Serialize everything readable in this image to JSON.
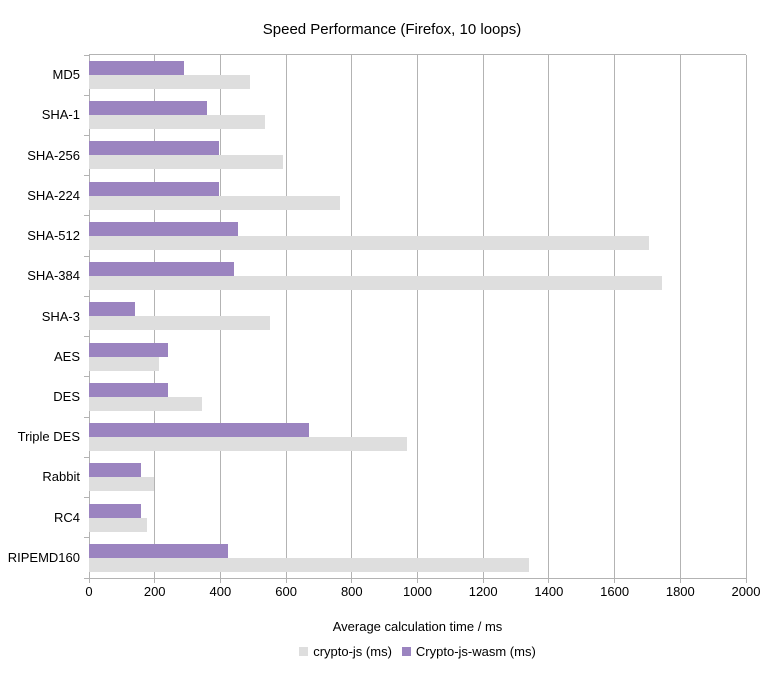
{
  "chart_data": {
    "type": "bar",
    "orientation": "horizontal",
    "title": "Speed Performance (Firefox, 10 loops)",
    "xlabel": "Average calculation time / ms",
    "ylabel": "",
    "xlim": [
      0,
      2000
    ],
    "xticks": [
      0,
      200,
      400,
      600,
      800,
      1000,
      1200,
      1400,
      1600,
      1800,
      2000
    ],
    "grid": true,
    "legend_position": "bottom",
    "categories": [
      "MD5",
      "SHA-1",
      "SHA-256",
      "SHA-224",
      "SHA-512",
      "SHA-384",
      "SHA-3",
      "AES",
      "DES",
      "Triple DES",
      "Rabbit",
      "RC4",
      "RIPEMD160"
    ],
    "series": [
      {
        "name": "crypto-js (ms)",
        "color": "#dedede",
        "values": [
          490,
          535,
          590,
          765,
          1705,
          1745,
          550,
          213,
          345,
          968,
          199,
          178,
          1340
        ]
      },
      {
        "name": "Crypto-js-wasm (ms)",
        "color": "#9b84c0",
        "values": [
          290,
          360,
          395,
          395,
          455,
          440,
          140,
          240,
          240,
          670,
          157,
          158,
          424
        ]
      }
    ],
    "colors": {
      "grid": "#b3b3b3",
      "text": "#000000",
      "background": "#ffffff"
    }
  }
}
